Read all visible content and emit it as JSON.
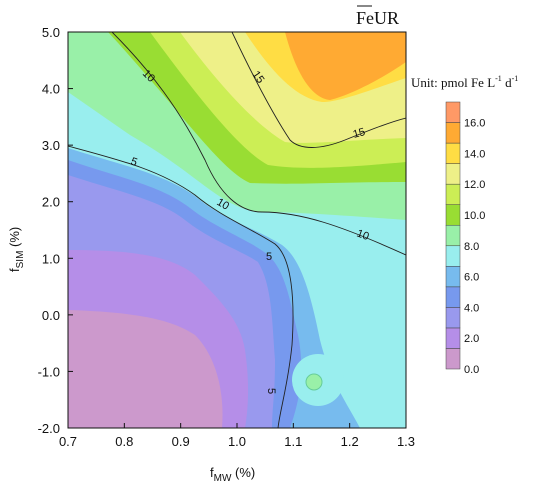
{
  "chart_data": {
    "type": "heatmap",
    "title": "FeUR",
    "unit_label": "Unit: pmol Fe L",
    "unit_exp1": "-1",
    "unit_mid": " d",
    "unit_exp2": "-1",
    "xlabel_main": "f",
    "xlabel_sub": "MW",
    "xlabel_unit": " (%)",
    "ylabel_main": "f",
    "ylabel_sub": "SIM",
    "ylabel_unit": " (%)",
    "xlim": [
      0.7,
      1.3
    ],
    "ylim": [
      -2.0,
      5.0
    ],
    "x_ticks": [
      "0.7",
      "0.8",
      "0.9",
      "1.0",
      "1.1",
      "1.2",
      "1.3"
    ],
    "y_ticks": [
      "5.0",
      "4.0",
      "3.0",
      "2.0",
      "1.0",
      "0.0",
      "-1.0",
      "-2.0"
    ],
    "colorbar_levels": [
      0,
      2,
      4,
      6,
      8,
      10,
      12,
      14,
      16,
      18
    ],
    "colorbar_labels": [
      "0.0",
      "2.0",
      "4.0",
      "6.0",
      "8.0",
      "10.0",
      "12.0",
      "14.0",
      "16.0"
    ],
    "contour_labels": [
      "5",
      "5",
      "5",
      "10",
      "10",
      "10",
      "15",
      "15"
    ],
    "colors": {
      "c0": "#cc99cc",
      "c1": "#b58ee8",
      "c2": "#9999ee",
      "c3": "#7799ee",
      "c4": "#77bbee",
      "c5": "#99eeee",
      "c6": "#99f0a8",
      "c7": "#99dd33",
      "c8": "#ccee55",
      "c9": "#eef088",
      "c10": "#ffdd44",
      "c11": "#ffaa33",
      "c12": "#ff9966"
    }
  }
}
